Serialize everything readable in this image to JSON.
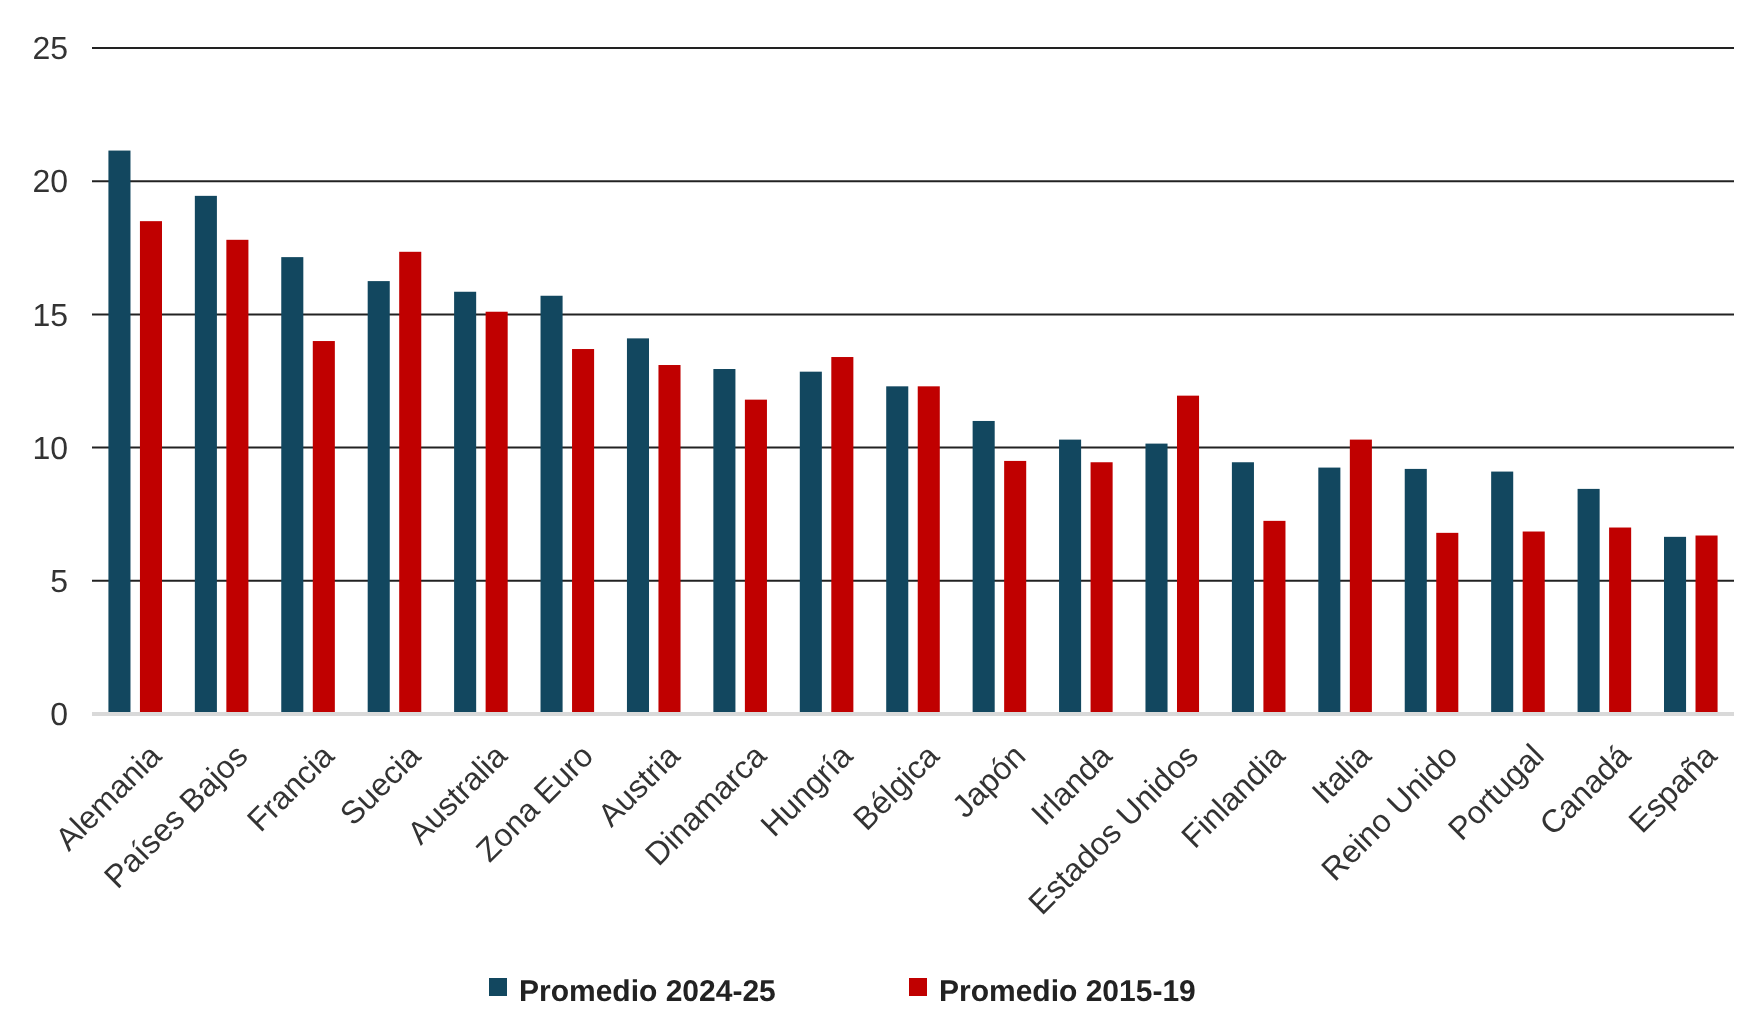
{
  "chart_data": {
    "type": "bar",
    "categories": [
      "Alemania",
      "Países Bajos",
      "Francia",
      "Suecia",
      "Australia",
      "Zona Euro",
      "Austria",
      "Dinamarca",
      "Hungría",
      "Bélgica",
      "Japón",
      "Irlanda",
      "Estados Unidos",
      "Finlandia",
      "Italia",
      "Reino Unido",
      "Portugal",
      "Canadá",
      "España"
    ],
    "series": [
      {
        "name": "Promedio 2024-25",
        "color": "#12475f",
        "values": [
          21.15,
          19.45,
          17.15,
          16.25,
          15.85,
          15.7,
          14.1,
          12.95,
          12.85,
          12.3,
          11.0,
          10.3,
          10.15,
          9.45,
          9.25,
          9.2,
          9.1,
          8.45,
          6.65
        ]
      },
      {
        "name": "Promedio 2015-19",
        "color": "#c00000",
        "values": [
          18.5,
          17.8,
          14.0,
          17.35,
          15.1,
          13.7,
          13.1,
          11.8,
          13.4,
          12.3,
          9.5,
          9.45,
          11.95,
          7.25,
          10.3,
          6.8,
          6.85,
          7.0,
          6.7
        ]
      }
    ],
    "ylim": [
      0,
      25
    ],
    "yticks": [
      0,
      5,
      10,
      15,
      20,
      25
    ],
    "grid": "y",
    "legend": "bottom"
  }
}
